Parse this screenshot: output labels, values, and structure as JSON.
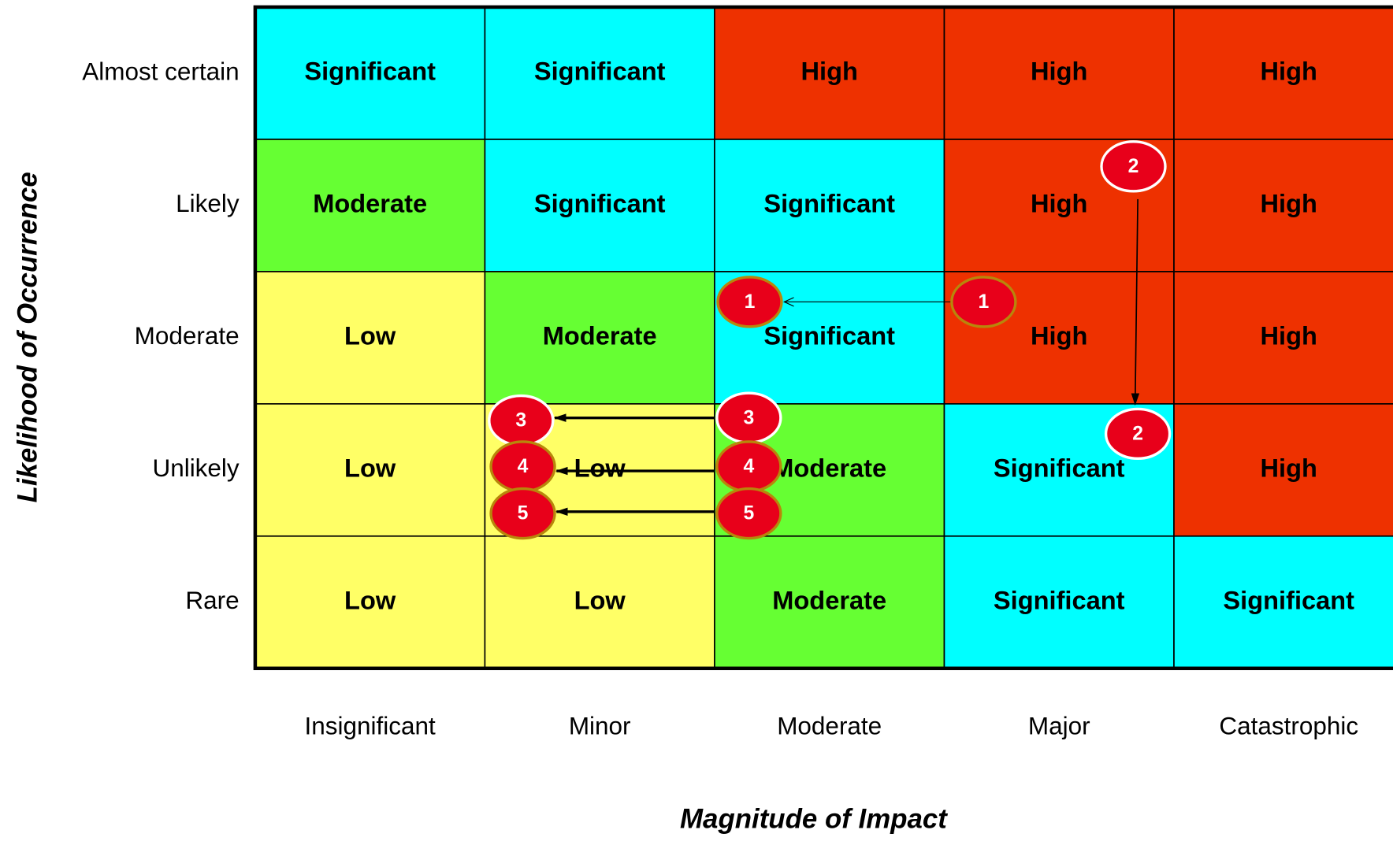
{
  "diagram": {
    "y_axis_title": "Likelihood of Occurrence",
    "x_axis_title": "Magnitude of Impact",
    "columns": [
      "Insignificant",
      "Minor",
      "Moderate",
      "Major",
      "Catastrophic"
    ],
    "rows": [
      {
        "label": "Almost certain",
        "cells": [
          {
            "text": "Significant",
            "color": "#00ffff"
          },
          {
            "text": "Significant",
            "color": "#00ffff"
          },
          {
            "text": "High",
            "color": "#ee3100"
          },
          {
            "text": "High",
            "color": "#ee3100"
          },
          {
            "text": "High",
            "color": "#ee3100"
          }
        ]
      },
      {
        "label": "Likely",
        "cells": [
          {
            "text": "Moderate",
            "color": "#66ff33"
          },
          {
            "text": "Significant",
            "color": "#00ffff"
          },
          {
            "text": "Significant",
            "color": "#00ffff"
          },
          {
            "text": "High",
            "color": "#ee3100"
          },
          {
            "text": "High",
            "color": "#ee3100"
          }
        ]
      },
      {
        "label": "Moderate",
        "cells": [
          {
            "text": "Low",
            "color": "#ffff66"
          },
          {
            "text": "Moderate",
            "color": "#66ff33"
          },
          {
            "text": "Significant",
            "color": "#00ffff"
          },
          {
            "text": "High",
            "color": "#ee3100"
          },
          {
            "text": "High",
            "color": "#ee3100"
          }
        ]
      },
      {
        "label": "Unlikely",
        "cells": [
          {
            "text": "Low",
            "color": "#ffff66"
          },
          {
            "text": "Low",
            "color": "#ffff66"
          },
          {
            "text": "Moderate",
            "color": "#66ff33"
          },
          {
            "text": "Significant",
            "color": "#00ffff"
          },
          {
            "text": "High",
            "color": "#ee3100"
          }
        ]
      },
      {
        "label": "Rare",
        "cells": [
          {
            "text": "Low",
            "color": "#ffff66"
          },
          {
            "text": "Low",
            "color": "#ffff66"
          },
          {
            "text": "Moderate",
            "color": "#66ff33"
          },
          {
            "text": "Significant",
            "color": "#00ffff"
          },
          {
            "text": "Significant",
            "color": "#00ffff"
          }
        ]
      }
    ],
    "moves": [
      {
        "from": 1,
        "to": 1
      },
      {
        "from": 2,
        "to": 2
      },
      {
        "from": 3,
        "to": 3
      },
      {
        "from": 4,
        "to": 4
      },
      {
        "from": 5,
        "to": 5
      }
    ]
  }
}
